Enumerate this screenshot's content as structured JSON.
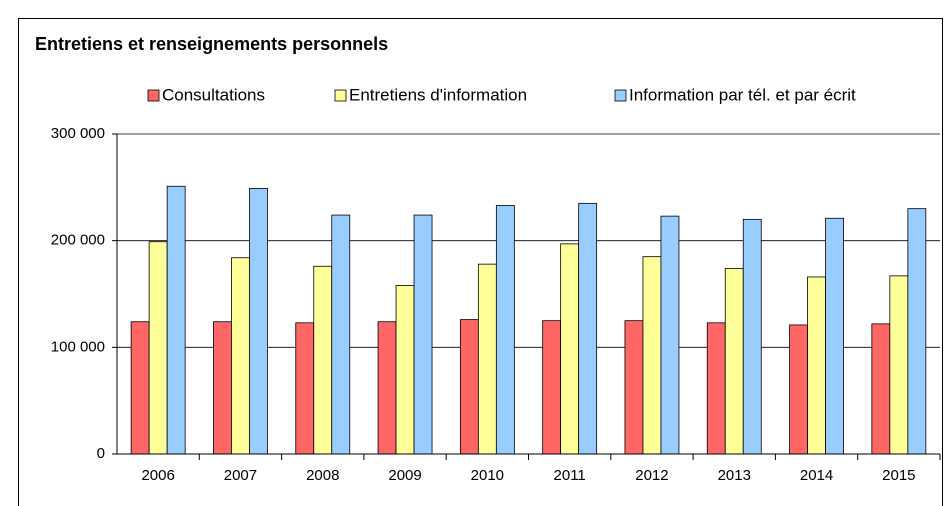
{
  "chart_data": {
    "type": "bar",
    "title": "Entretiens et renseignements personnels",
    "categories": [
      "2006",
      "2007",
      "2008",
      "2009",
      "2010",
      "2011",
      "2012",
      "2013",
      "2014",
      "2015"
    ],
    "series": [
      {
        "name": "Consultations",
        "color": "#ff6666",
        "values": [
          124000,
          124000,
          123000,
          124000,
          126000,
          125000,
          125000,
          123000,
          121000,
          122000
        ]
      },
      {
        "name": "Entretiens d'information",
        "color": "#ffff99",
        "values": [
          199000,
          184000,
          176000,
          158000,
          178000,
          197000,
          185000,
          174000,
          166000,
          167000
        ]
      },
      {
        "name": "Information par tél. et par écrit",
        "color": "#99ccff",
        "values": [
          251000,
          249000,
          224000,
          224000,
          233000,
          235000,
          223000,
          220000,
          221000,
          230000
        ]
      }
    ],
    "ylim": [
      0,
      300000
    ],
    "yticks": [
      0,
      {
        "value": 100000,
        "label": "100 000"
      },
      {
        "value": 200000,
        "label": "200 000"
      },
      {
        "value": 300000,
        "label": "300 000"
      }
    ],
    "grid": true
  }
}
